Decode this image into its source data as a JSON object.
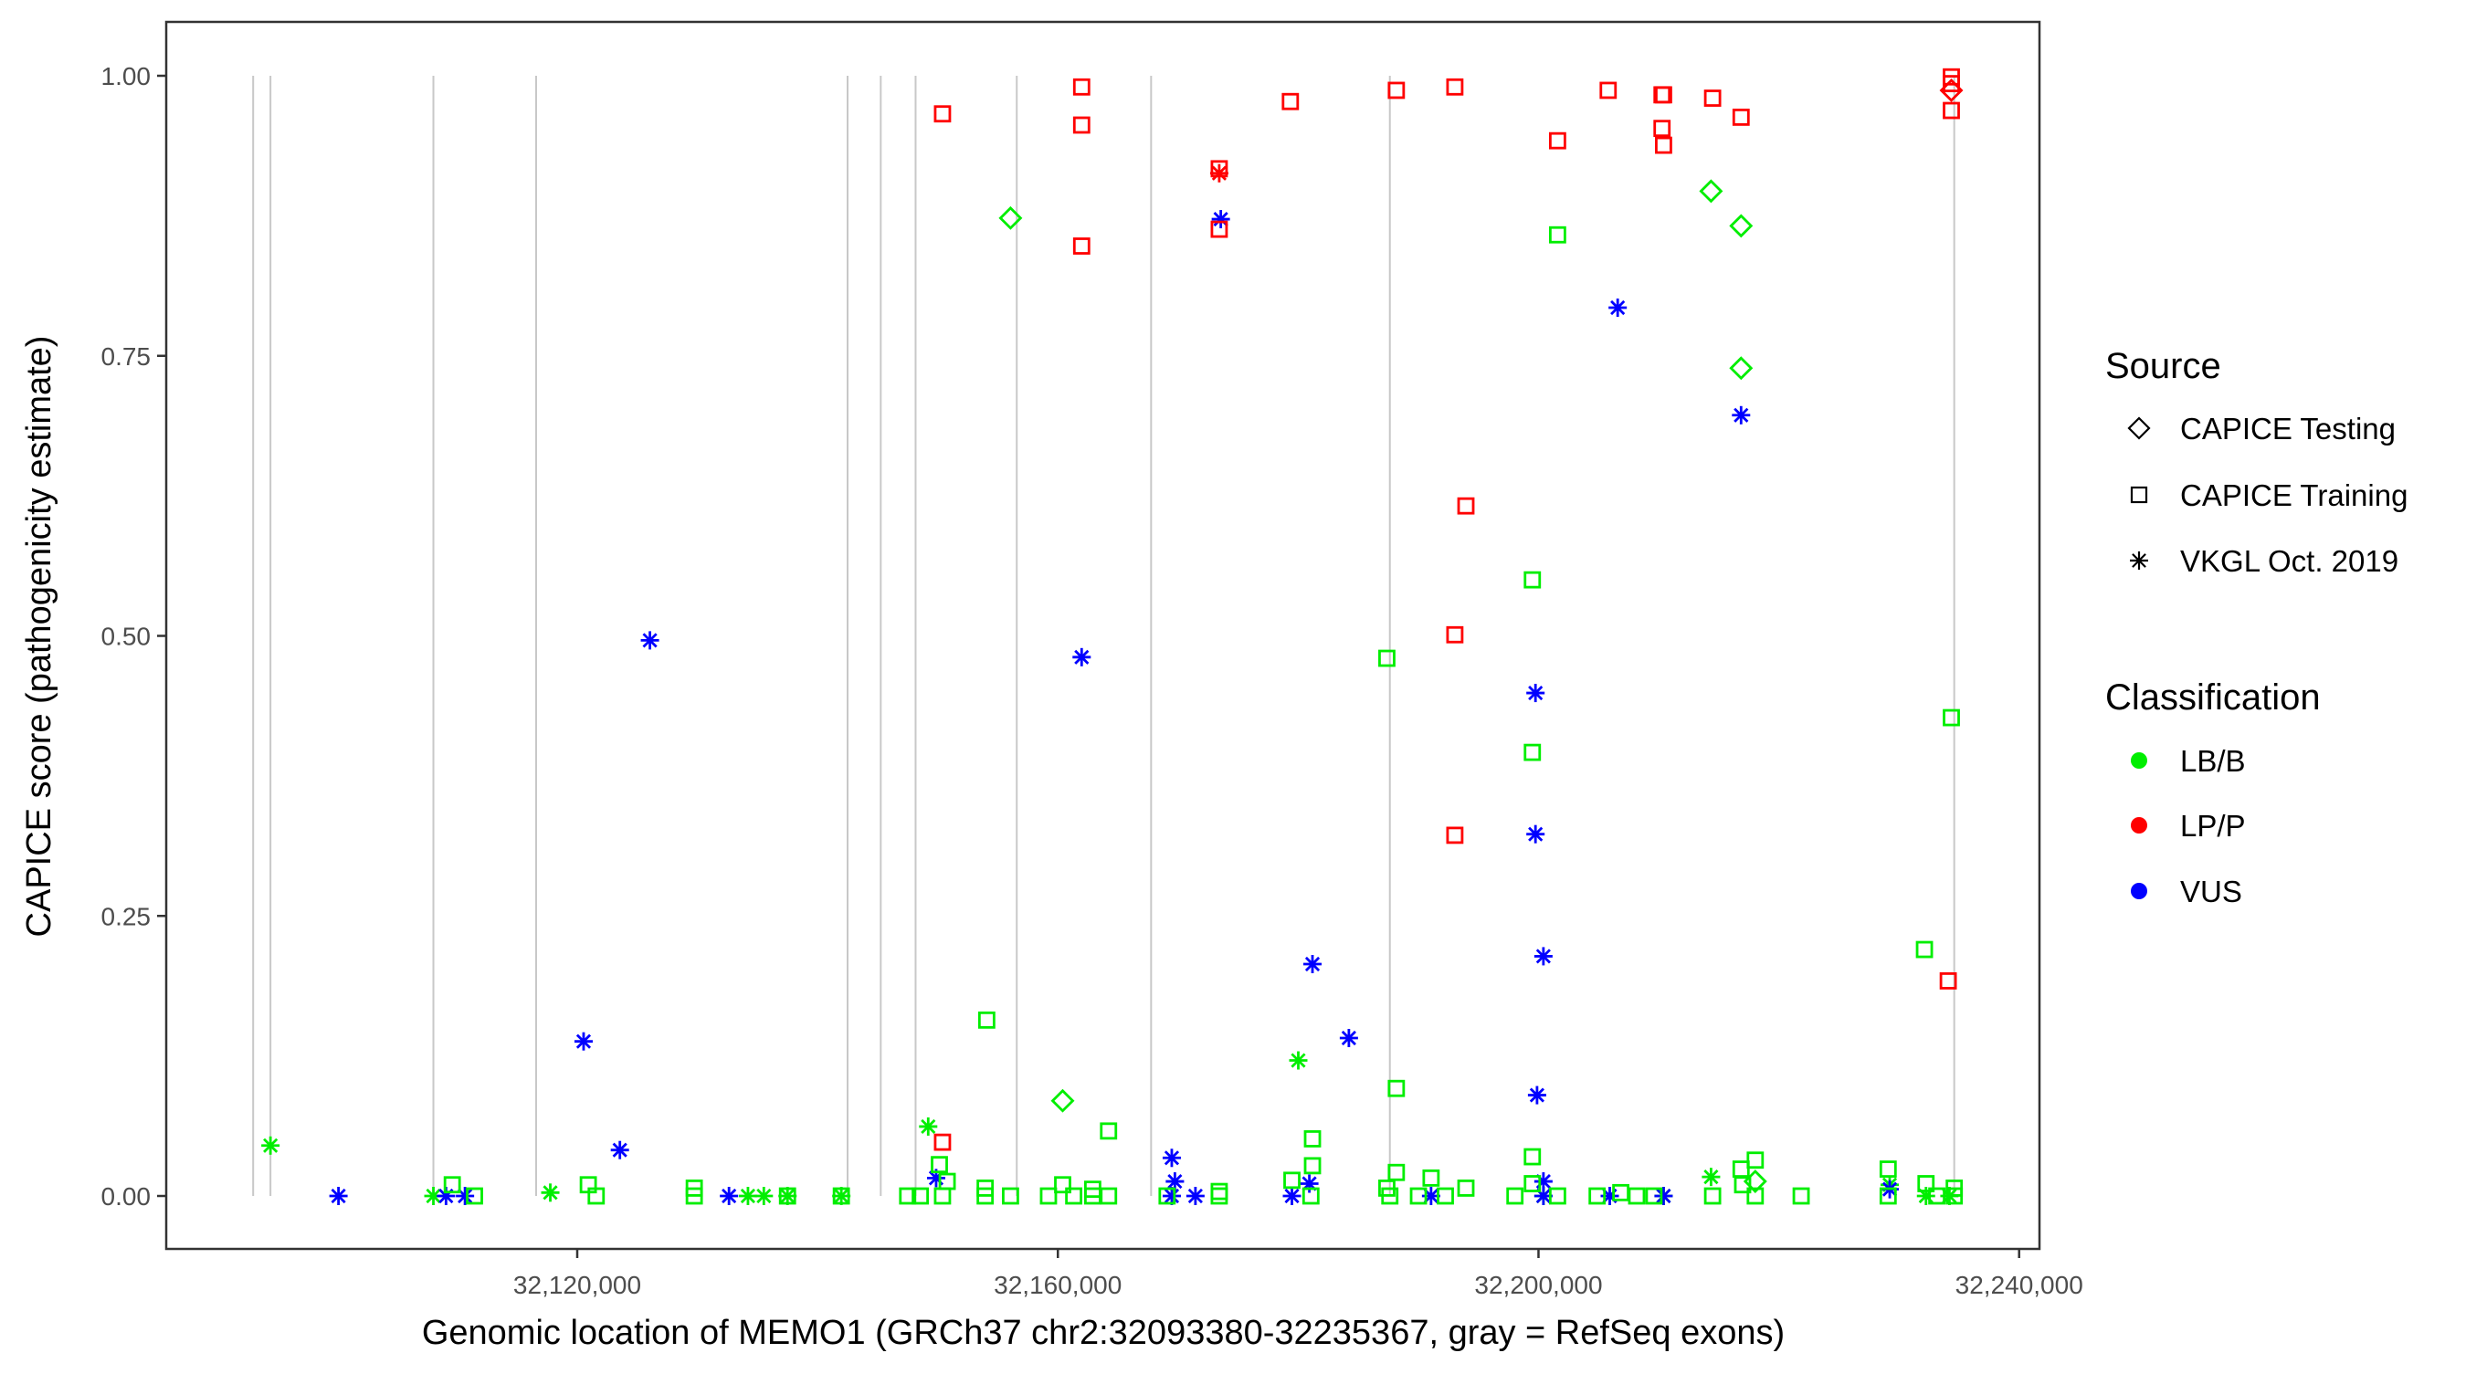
{
  "chart_data": {
    "type": "scatter",
    "xlabel": "Genomic location of MEMO1 (GRCh37 chr2:32093380-32235367, gray = RefSeq exons)",
    "ylabel": "CAPICE score (pathogenicity estimate)",
    "xlim": [
      32085800,
      32241700
    ],
    "ylim": [
      -0.045,
      1.05
    ],
    "x_ticks": [
      32120000,
      32160000,
      32200000,
      32240000
    ],
    "x_tick_labels": [
      "32,120,000",
      "32,160,000",
      "32,200,000",
      "32,240,000"
    ],
    "y_ticks": [
      0,
      0.25,
      0.5,
      0.75,
      1
    ],
    "y_tick_labels": [
      "0.00",
      "0.25",
      "0.50",
      "0.75",
      "1.00"
    ],
    "grid": false,
    "exon_lines_color": "#c8c8c8",
    "exon_positions": [
      32093030,
      32094470,
      32108030,
      32116580,
      32142500,
      32145260,
      32148160,
      32156580,
      32167760,
      32187630,
      32234600
    ],
    "legend_placement": "right",
    "legend": {
      "source_title": "Source",
      "sources": [
        {
          "label": "CAPICE Testing",
          "shape": "diamond"
        },
        {
          "label": "CAPICE Training",
          "shape": "square"
        },
        {
          "label": "VKGL Oct. 2019",
          "shape": "asterisk"
        }
      ],
      "classification_title": "Classification",
      "classes": [
        {
          "label": "LB/B",
          "color": "#00ee00"
        },
        {
          "label": "LP/P",
          "color": "#ff0000"
        },
        {
          "label": "VUS",
          "color": "#0000ff"
        }
      ]
    },
    "series": [
      {
        "source": "VKGL Oct. 2019",
        "classification": "LB/B",
        "x": [
          32094470,
          32108030,
          32117760,
          32134210,
          32135530,
          32137500,
          32141980,
          32149210,
          32180010,
          32214360,
          32229230,
          32232250,
          32234200,
          32200410,
          32210410
        ],
        "y": [
          0.045,
          0,
          0.003,
          0,
          0,
          0,
          0,
          0.062,
          0.121,
          0.017,
          0.01,
          0,
          0,
          0,
          0
        ]
      },
      {
        "source": "VKGL Oct. 2019",
        "classification": "VUS",
        "x": [
          32100130,
          32109080,
          32110660,
          32120530,
          32123550,
          32126050,
          32132630,
          32149870,
          32161980,
          32169480,
          32169740,
          32169480,
          32171450,
          32173560,
          32179480,
          32180930,
          32181190,
          32184220,
          32191060,
          32199750,
          32199750,
          32200410,
          32199880,
          32200410,
          32200410,
          32205930,
          32206590,
          32210410,
          32216860,
          32229230
        ],
        "y": [
          0,
          0,
          0,
          0.138,
          0.041,
          0.496,
          0,
          0.016,
          0.481,
          0.034,
          0.013,
          0,
          0,
          0.872,
          0,
          0.011,
          0.207,
          0.141,
          0,
          0.449,
          0.323,
          0.214,
          0.09,
          0.013,
          0,
          0,
          0.793,
          0,
          0.697,
          0.006
        ]
      },
      {
        "source": "VKGL Oct. 2019",
        "classification": "LP/P",
        "x": [
          32173430
        ],
        "y": [
          0.913
        ]
      },
      {
        "source": "CAPICE Testing",
        "classification": "LB/B",
        "x": [
          32156060,
          32160400,
          32214360,
          32216860,
          32216860,
          32218040
        ],
        "y": [
          0.873,
          0.085,
          0.897,
          0.866,
          0.739,
          0.013
        ]
      },
      {
        "source": "CAPICE Testing",
        "classification": "LP/P",
        "x": [
          32234360
        ],
        "y": [
          0.987
        ]
      },
      {
        "source": "CAPICE Training",
        "classification": "LP/P",
        "x": [
          32150400,
          32161980,
          32161980,
          32161980,
          32173430,
          32173430,
          32179350,
          32188170,
          32193040,
          32201590,
          32193960,
          32193040,
          32193040,
          32205800,
          32210280,
          32210410,
          32210280,
          32210410,
          32214490,
          32216860,
          32150400,
          32234100,
          32234360,
          32234360,
          32234360
        ],
        "y": [
          0.966,
          0.99,
          0.956,
          0.848,
          0.917,
          0.863,
          0.977,
          0.987,
          0.99,
          0.942,
          0.616,
          0.501,
          0.322,
          0.987,
          0.983,
          0.983,
          0.953,
          0.938,
          0.98,
          0.963,
          0.048,
          0.192,
          0.999,
          0.993,
          0.969
        ]
      },
      {
        "source": "CAPICE Training",
        "classification": "LB/B",
        "x": [
          32109600,
          32111450,
          32120920,
          32121580,
          32129740,
          32129740,
          32137500,
          32141980,
          32147500,
          32148550,
          32150140,
          32150790,
          32150400,
          32154080,
          32153950,
          32153950,
          32156060,
          32159220,
          32160400,
          32161320,
          32162900,
          32162900,
          32164220,
          32164220,
          32169090,
          32173430,
          32173430,
          32179480,
          32181190,
          32181190,
          32181060,
          32187380,
          32187380,
          32187630,
          32188170,
          32188170,
          32190010,
          32191060,
          32192250,
          32193960,
          32198040,
          32199490,
          32199490,
          32199490,
          32199490,
          32201590,
          32201590,
          32204880,
          32206850,
          32208170,
          32209610,
          32214490,
          32216860,
          32216990,
          32218040,
          32218040,
          32221860,
          32229100,
          32229100,
          32232120,
          32232250,
          32234360,
          32234600,
          32234600,
          32233150
        ],
        "y": [
          0.01,
          0,
          0.01,
          0,
          0.007,
          0,
          0,
          0,
          0,
          0,
          0.028,
          0.013,
          0,
          0.157,
          0.007,
          0,
          0,
          0,
          0.01,
          0,
          0.006,
          0,
          0.058,
          0,
          0,
          0.004,
          0,
          0.014,
          0.051,
          0.027,
          0,
          0.48,
          0.007,
          0,
          0.096,
          0.021,
          0,
          0.016,
          0,
          0.007,
          0,
          0.55,
          0.396,
          0.035,
          0.011,
          0.858,
          0,
          0,
          0.003,
          0,
          0,
          0,
          0.024,
          0.01,
          0.032,
          0,
          0,
          0.024,
          0,
          0.22,
          0.011,
          0.427,
          0.007,
          0,
          0
        ]
      }
    ]
  }
}
